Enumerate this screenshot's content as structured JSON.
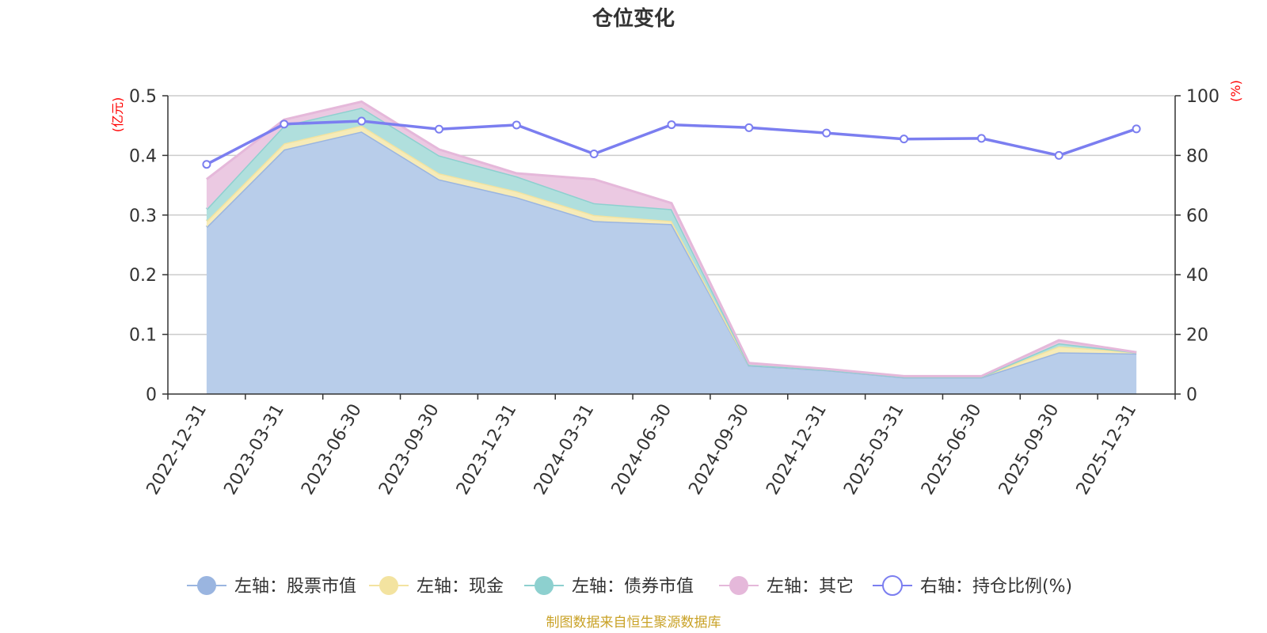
{
  "chart_data": {
    "type": "area",
    "title": "仓位变化",
    "categories": [
      "2022-12-31",
      "2023-03-31",
      "2023-06-30",
      "2023-09-30",
      "2023-12-31",
      "2024-03-31",
      "2024-06-30",
      "2024-09-30",
      "2024-12-31",
      "2025-03-31",
      "2025-06-30",
      "2025-09-30",
      "2025-12-31"
    ],
    "left_axis": {
      "unit": "(亿元)",
      "ylim": [
        0,
        0.5
      ],
      "ticks": [
        "0",
        "0.1",
        "0.2",
        "0.3",
        "0.4",
        "0.5"
      ]
    },
    "right_axis": {
      "unit": "(%)",
      "ylim": [
        0,
        100
      ],
      "ticks": [
        "0",
        "20",
        "40",
        "60",
        "80",
        "100"
      ]
    },
    "series": [
      {
        "name": "左轴：股票市值",
        "axis": "left",
        "kind": "stacked-area",
        "color": "#9ab5e0",
        "fill": "#b8cdea",
        "values": [
          0.28,
          0.41,
          0.44,
          0.36,
          0.33,
          0.29,
          0.285,
          0.048,
          0.04,
          0.028,
          0.028,
          0.07,
          0.068
        ]
      },
      {
        "name": "左轴：现金",
        "axis": "left",
        "kind": "stacked-area",
        "color": "#f3e3a0",
        "fill": "#f6ebb8",
        "values": [
          0.01,
          0.01,
          0.01,
          0.01,
          0.01,
          0.01,
          0.005,
          0.001,
          0.001,
          0.001,
          0.001,
          0.01,
          0.002
        ]
      },
      {
        "name": "左轴：债券市值",
        "axis": "left",
        "kind": "stacked-area",
        "color": "#8dd0cf",
        "fill": "#b0dfdd",
        "values": [
          0.02,
          0.03,
          0.03,
          0.03,
          0.025,
          0.02,
          0.02,
          0.0,
          0.0,
          0.0,
          0.0,
          0.005,
          0.0
        ]
      },
      {
        "name": "左轴：其它",
        "axis": "left",
        "kind": "stacked-area",
        "color": "#e5b8da",
        "fill": "#ebc9e2",
        "values": [
          0.05,
          0.01,
          0.01,
          0.01,
          0.005,
          0.04,
          0.01,
          0.003,
          0.001,
          0.001,
          0.001,
          0.005,
          0.0
        ]
      },
      {
        "name": "右轴：持仓比例(%)",
        "axis": "right",
        "kind": "line",
        "color": "#7b7ef0",
        "values": [
          77,
          90.5,
          91.5,
          88.8,
          90.2,
          80.5,
          90.3,
          89.3,
          87.5,
          85.5,
          85.7,
          80.0,
          88.9
        ]
      }
    ],
    "legend_position": "bottom",
    "grid": true
  },
  "source_note": "制图数据来自恒生聚源数据库"
}
